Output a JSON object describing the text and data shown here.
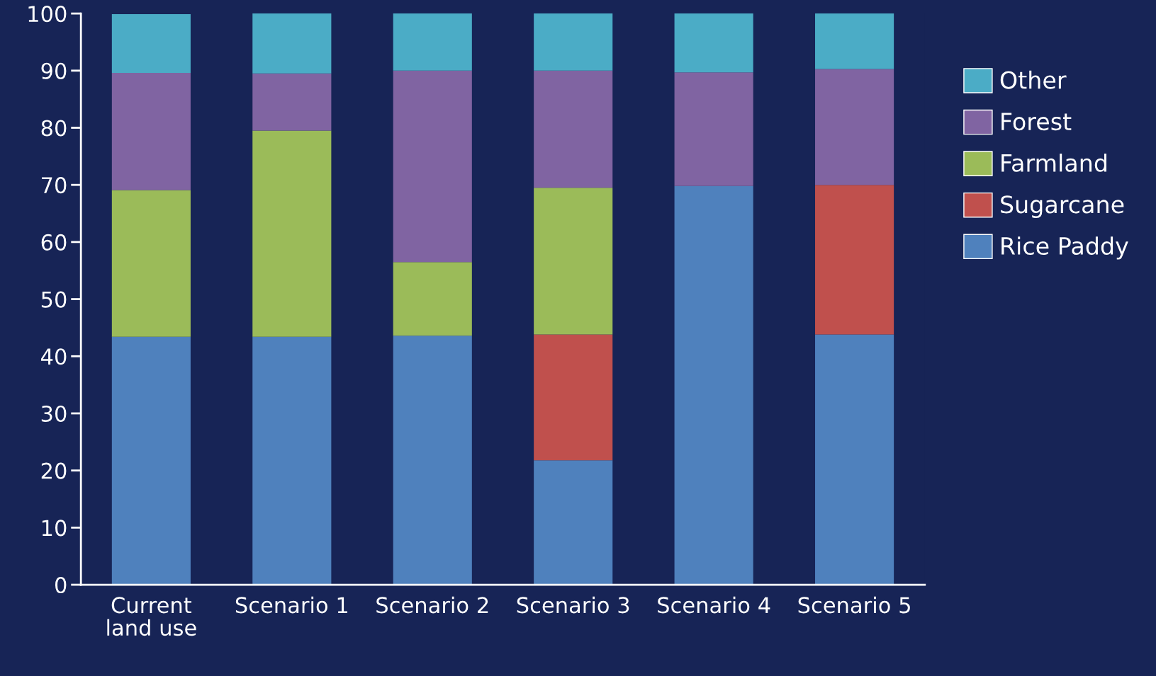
{
  "chart_data": {
    "type": "bar",
    "stacked": true,
    "categories": [
      "Current\nland use",
      "Scenario 1",
      "Scenario 2",
      "Scenario 3",
      "Scenario 4",
      "Scenario 5"
    ],
    "series": [
      {
        "name": "Rice Paddy",
        "color": "#4f81bd",
        "values": [
          43.4,
          43.4,
          43.6,
          21.8,
          69.8,
          43.8
        ]
      },
      {
        "name": "Sugarcane",
        "color": "#c0504d",
        "values": [
          null,
          null,
          null,
          22.0,
          null,
          26.2
        ]
      },
      {
        "name": "Farmland",
        "color": "#9bbb59",
        "values": [
          25.7,
          36.1,
          12.9,
          25.7,
          null,
          null
        ]
      },
      {
        "name": "Forest",
        "color": "#8064a2",
        "values": [
          20.5,
          10.0,
          33.5,
          20.5,
          19.9,
          20.3
        ]
      },
      {
        "name": "Other",
        "color": "#4bacc6",
        "values": [
          10.3,
          10.5,
          10.0,
          10.0,
          10.3,
          9.7
        ]
      }
    ],
    "ylim": [
      0,
      100
    ],
    "yticks": [
      0,
      10,
      20,
      30,
      40,
      50,
      60,
      70,
      80,
      90,
      100
    ],
    "grid": false,
    "legend": "top right"
  }
}
